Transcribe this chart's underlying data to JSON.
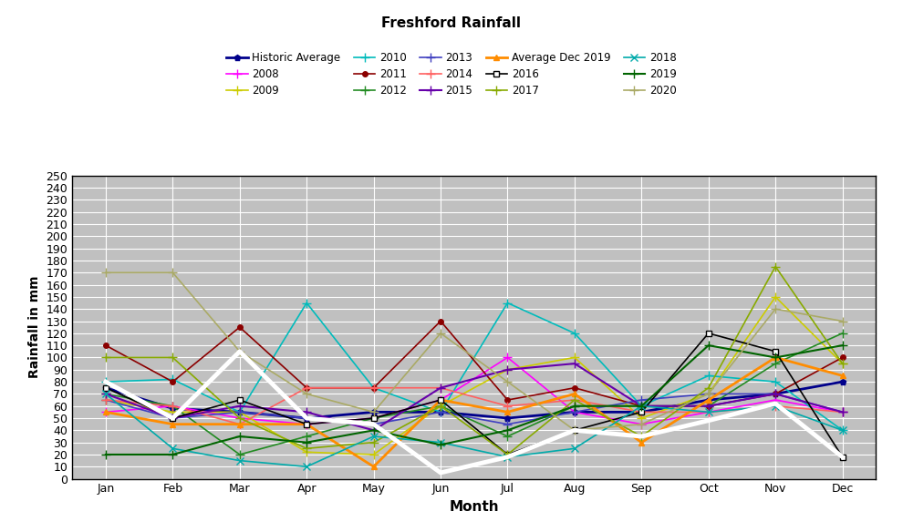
{
  "title": "Freshford Rainfall",
  "xlabel": "Month",
  "ylabel": "Rainfall in mm",
  "months": [
    "Jan",
    "Feb",
    "Mar",
    "Apr",
    "May",
    "Jun",
    "Jul",
    "Aug",
    "Sep",
    "Oct",
    "Nov",
    "Dec"
  ],
  "ylim": [
    0,
    250
  ],
  "yticks": [
    0,
    10,
    20,
    30,
    40,
    50,
    60,
    70,
    80,
    90,
    100,
    110,
    120,
    130,
    140,
    150,
    160,
    170,
    180,
    190,
    200,
    210,
    220,
    230,
    240,
    250
  ],
  "series": [
    {
      "label": "Historic Average",
      "color": "#00008B",
      "marker": "p",
      "markersize": 5,
      "linewidth": 2.0,
      "values": [
        75,
        58,
        55,
        50,
        55,
        55,
        50,
        55,
        55,
        65,
        70,
        80
      ]
    },
    {
      "label": "2008",
      "color": "#FF00FF",
      "marker": "+",
      "markersize": 7,
      "linewidth": 1.2,
      "values": [
        55,
        60,
        50,
        45,
        50,
        65,
        100,
        55,
        45,
        55,
        65,
        55
      ]
    },
    {
      "label": "2009",
      "color": "#CCCC00",
      "marker": "+",
      "markersize": 7,
      "linewidth": 1.2,
      "values": [
        65,
        55,
        55,
        22,
        20,
        60,
        90,
        100,
        50,
        70,
        150,
        95
      ]
    },
    {
      "label": "2010",
      "color": "#00BBBB",
      "marker": "+",
      "markersize": 7,
      "linewidth": 1.2,
      "values": [
        80,
        82,
        55,
        145,
        75,
        55,
        145,
        120,
        60,
        85,
        80,
        40
      ]
    },
    {
      "label": "2011",
      "color": "#8B0000",
      "marker": "o",
      "markersize": 4,
      "linewidth": 1.2,
      "values": [
        110,
        80,
        125,
        75,
        75,
        130,
        65,
        75,
        60,
        60,
        70,
        100
      ]
    },
    {
      "label": "2012",
      "color": "#228B22",
      "marker": "+",
      "markersize": 7,
      "linewidth": 1.2,
      "values": [
        70,
        60,
        20,
        35,
        50,
        60,
        35,
        60,
        60,
        60,
        95,
        120
      ]
    },
    {
      "label": "2013",
      "color": "#4040C0",
      "marker": "+",
      "markersize": 7,
      "linewidth": 1.2,
      "values": [
        65,
        50,
        55,
        50,
        45,
        55,
        45,
        55,
        65,
        70,
        70,
        55
      ]
    },
    {
      "label": "2014",
      "color": "#FF6060",
      "marker": "+",
      "markersize": 7,
      "linewidth": 1.2,
      "values": [
        65,
        60,
        45,
        75,
        75,
        75,
        60,
        65,
        55,
        55,
        60,
        55
      ]
    },
    {
      "label": "2015",
      "color": "#6600AA",
      "marker": "+",
      "markersize": 7,
      "linewidth": 1.5,
      "values": [
        70,
        50,
        60,
        55,
        40,
        75,
        90,
        95,
        60,
        60,
        70,
        55
      ]
    },
    {
      "label": "Average Dec 2019",
      "color": "#FF8C00",
      "marker": "^",
      "markersize": 4,
      "linewidth": 2.0,
      "values": [
        55,
        45,
        45,
        45,
        10,
        65,
        55,
        70,
        30,
        65,
        100,
        85
      ]
    },
    {
      "label": "2016",
      "color": "#000000",
      "marker": "s",
      "markersize": 5,
      "linewidth": 1.2,
      "markerfacecolor": "white",
      "values": [
        75,
        50,
        65,
        45,
        50,
        65,
        20,
        40,
        55,
        120,
        105,
        18
      ]
    },
    {
      "label": "2017",
      "color": "#88AA00",
      "marker": "+",
      "markersize": 7,
      "linewidth": 1.2,
      "values": [
        100,
        100,
        50,
        25,
        30,
        60,
        20,
        65,
        35,
        75,
        175,
        95
      ]
    },
    {
      "label": "2018",
      "color": "#00AAAA",
      "marker": "x",
      "markersize": 6,
      "linewidth": 1.2,
      "values": [
        70,
        25,
        15,
        10,
        35,
        30,
        18,
        25,
        60,
        55,
        60,
        40
      ]
    },
    {
      "label": "2019",
      "color": "#006400",
      "marker": "+",
      "markersize": 7,
      "linewidth": 1.5,
      "values": [
        20,
        20,
        35,
        30,
        40,
        28,
        40,
        60,
        60,
        110,
        100,
        110
      ]
    },
    {
      "label": "2020",
      "color": "#AAAA66",
      "marker": "+",
      "markersize": 7,
      "linewidth": 1.2,
      "values": [
        170,
        170,
        105,
        70,
        55,
        120,
        80,
        40,
        45,
        70,
        140,
        130
      ]
    }
  ],
  "white_line": {
    "color": "#FFFFFF",
    "linewidth": 3.5,
    "values": [
      80,
      50,
      105,
      50,
      45,
      5,
      18,
      40,
      35,
      48,
      62,
      18
    ]
  },
  "background_color": "#C0C0C0",
  "grid_color": "#FFFFFF",
  "title_fontsize": 11,
  "axis_fontsize": 9,
  "legend_fontsize": 8.5
}
